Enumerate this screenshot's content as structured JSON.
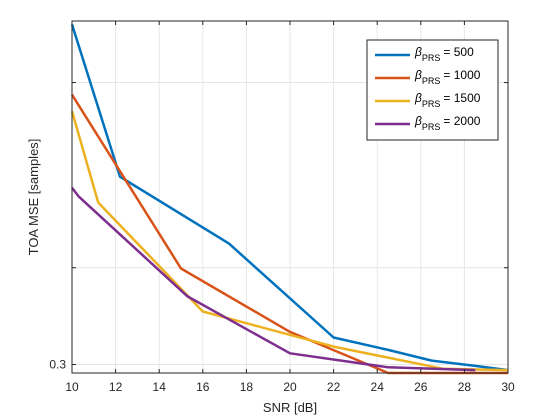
{
  "chart_data": {
    "type": "line",
    "xlabel": "SNR [dB]",
    "ylabel": "TOA MSE [samples]",
    "xlim": [
      10,
      30
    ],
    "x_ticks": [
      "10",
      "12",
      "14",
      "16",
      "18",
      "20",
      "22",
      "24",
      "26",
      "28",
      "30"
    ],
    "y_tick_labels": [
      "0.3"
    ],
    "y_scale": "log",
    "grid": true,
    "legend_location": "top-right",
    "series": [
      {
        "name": "β_PRS = 500",
        "legend_symbol": "β",
        "legend_sub": "PRS",
        "legend_value": "= 500",
        "color": "#0072BD",
        "x": [
          10,
          12.2,
          17.2,
          22,
          24.5,
          26.5,
          28.5,
          30
        ],
        "y": [
          20.6,
          3.1,
          1.35,
          0.42,
          0.36,
          0.315,
          0.295,
          0.28
        ]
      },
      {
        "name": "β_PRS = 1000",
        "legend_symbol": "β",
        "legend_sub": "PRS",
        "legend_value": "= 1000",
        "color": "#D95319",
        "x": [
          10,
          15,
          20,
          24.5,
          30
        ],
        "y": [
          8.6,
          0.99,
          0.45,
          0.27,
          0.27
        ]
      },
      {
        "name": "β_PRS = 1500",
        "legend_symbol": "β",
        "legend_sub": "PRS",
        "legend_value": "= 1500",
        "color": "#EDB120",
        "x": [
          10,
          11.2,
          16,
          22,
          27,
          30
        ],
        "y": [
          7.0,
          2.25,
          0.58,
          0.375,
          0.285,
          0.28
        ]
      },
      {
        "name": "β_PRS = 2000",
        "legend_symbol": "β",
        "legend_sub": "PRS",
        "legend_value": "= 2000",
        "color": "#7E2F8E",
        "x": [
          10,
          10.3,
          15.3,
          20,
          24.5,
          28.5
        ],
        "y": [
          2.7,
          2.43,
          0.7,
          0.345,
          0.29,
          0.28
        ]
      }
    ]
  }
}
